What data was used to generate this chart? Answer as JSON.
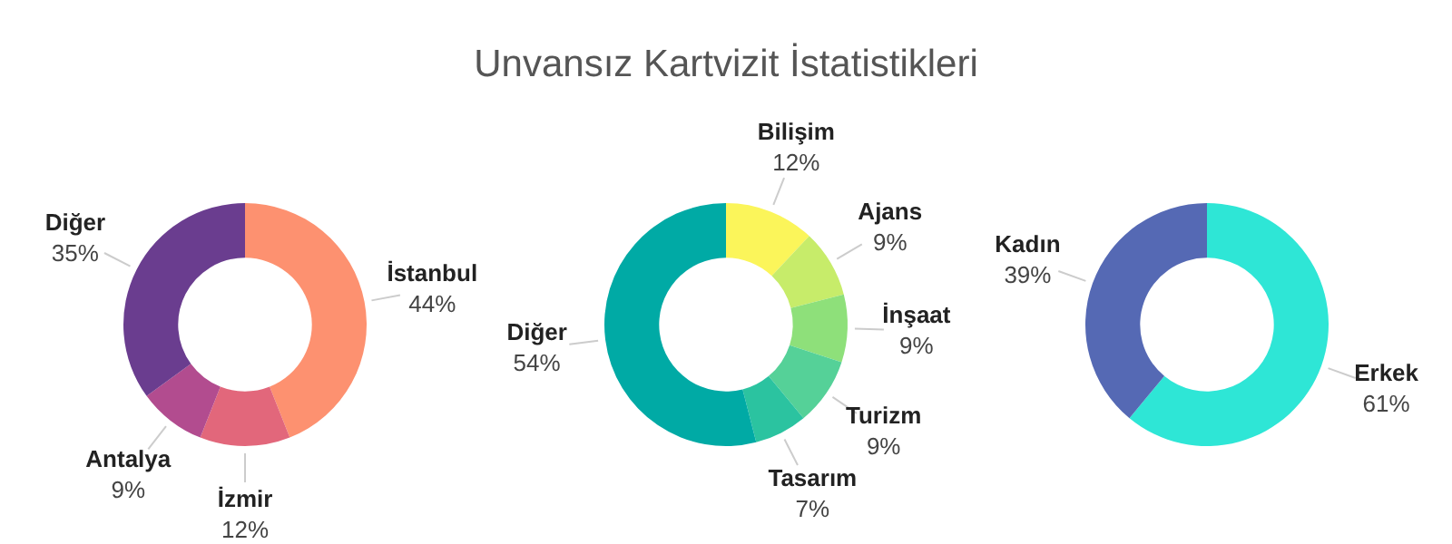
{
  "chart_data": [
    {
      "type": "donut",
      "categories": [
        "İstanbul",
        "İzmir",
        "Antalya",
        "Diğer"
      ],
      "values": [
        44,
        12,
        9,
        35
      ],
      "value_labels": [
        "44%",
        "12%",
        "9%",
        "35%"
      ],
      "colors": [
        "#fd9170",
        "#e2677b",
        "#b24c8f",
        "#6a3d8f"
      ]
    },
    {
      "type": "donut",
      "title": "Unvansız Kartvizit İstatistikleri",
      "categories": [
        "Bilişim",
        "Ajans",
        "İnşaat",
        "Turizm",
        "Tasarım",
        "Diğer"
      ],
      "values": [
        12,
        9,
        9,
        9,
        7,
        54
      ],
      "value_labels": [
        "12%",
        "9%",
        "9%",
        "9%",
        "7%",
        "54%"
      ],
      "colors": [
        "#fbf55a",
        "#c7ec6a",
        "#8ee07a",
        "#55d198",
        "#2bc3a0",
        "#00aaa5"
      ]
    },
    {
      "type": "donut",
      "categories": [
        "Erkek",
        "Kadın"
      ],
      "values": [
        61,
        39
      ],
      "value_labels": [
        "61%",
        "39%"
      ],
      "colors": [
        "#2ee6d6",
        "#5569b4"
      ]
    }
  ]
}
